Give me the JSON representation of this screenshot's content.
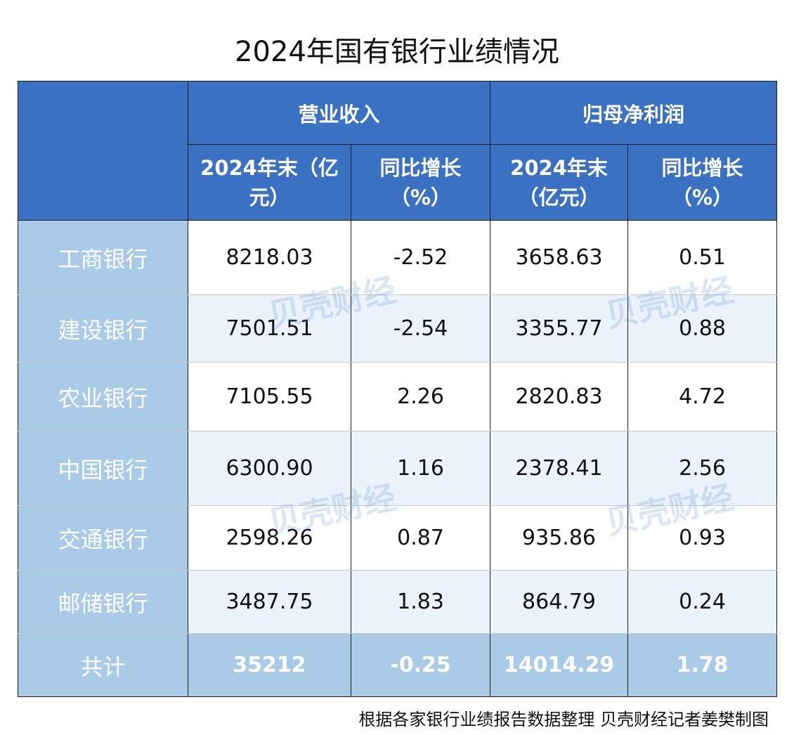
{
  "title": "2024年国有银行业绩情况",
  "headers": {
    "group1": "营业收入",
    "group2": "归母净利润",
    "g1_col1": "2024年末（亿元）",
    "g1_col2": "同比增长（%）",
    "g2_col1": "2024年末（亿元）",
    "g2_col2": "同比增长（%）"
  },
  "rows": [
    {
      "name": "工商银行",
      "revenue": "8218.03",
      "revenue_growth": "-2.52",
      "profit": "3658.63",
      "profit_growth": "0.51"
    },
    {
      "name": "建设银行",
      "revenue": "7501.51",
      "revenue_growth": "-2.54",
      "profit": "3355.77",
      "profit_growth": "0.88"
    },
    {
      "name": "农业银行",
      "revenue": "7105.55",
      "revenue_growth": "2.26",
      "profit": "2820.83",
      "profit_growth": "4.72"
    },
    {
      "name": "中国银行",
      "revenue": "6300.90",
      "revenue_growth": "1.16",
      "profit": "2378.41",
      "profit_growth": "2.56"
    },
    {
      "name": "交通银行",
      "revenue": "2598.26",
      "revenue_growth": "0.87",
      "profit": "935.86",
      "profit_growth": "0.93"
    },
    {
      "name": "邮储银行",
      "revenue": "3487.75",
      "revenue_growth": "1.83",
      "profit": "864.79",
      "profit_growth": "0.24"
    }
  ],
  "total": {
    "name": "共计",
    "revenue": "35212",
    "revenue_growth": "-0.25",
    "profit": "14014.29",
    "profit_growth": "1.78"
  },
  "footer": "根据各家银行业绩报告数据整理 贝壳财经记者姜樊制图",
  "watermark": "贝壳财经",
  "colors": {
    "header_bg": "#3a71c2",
    "rowname_bg": "#a9cbe8",
    "stripe_bg": "#eaf3fb"
  }
}
